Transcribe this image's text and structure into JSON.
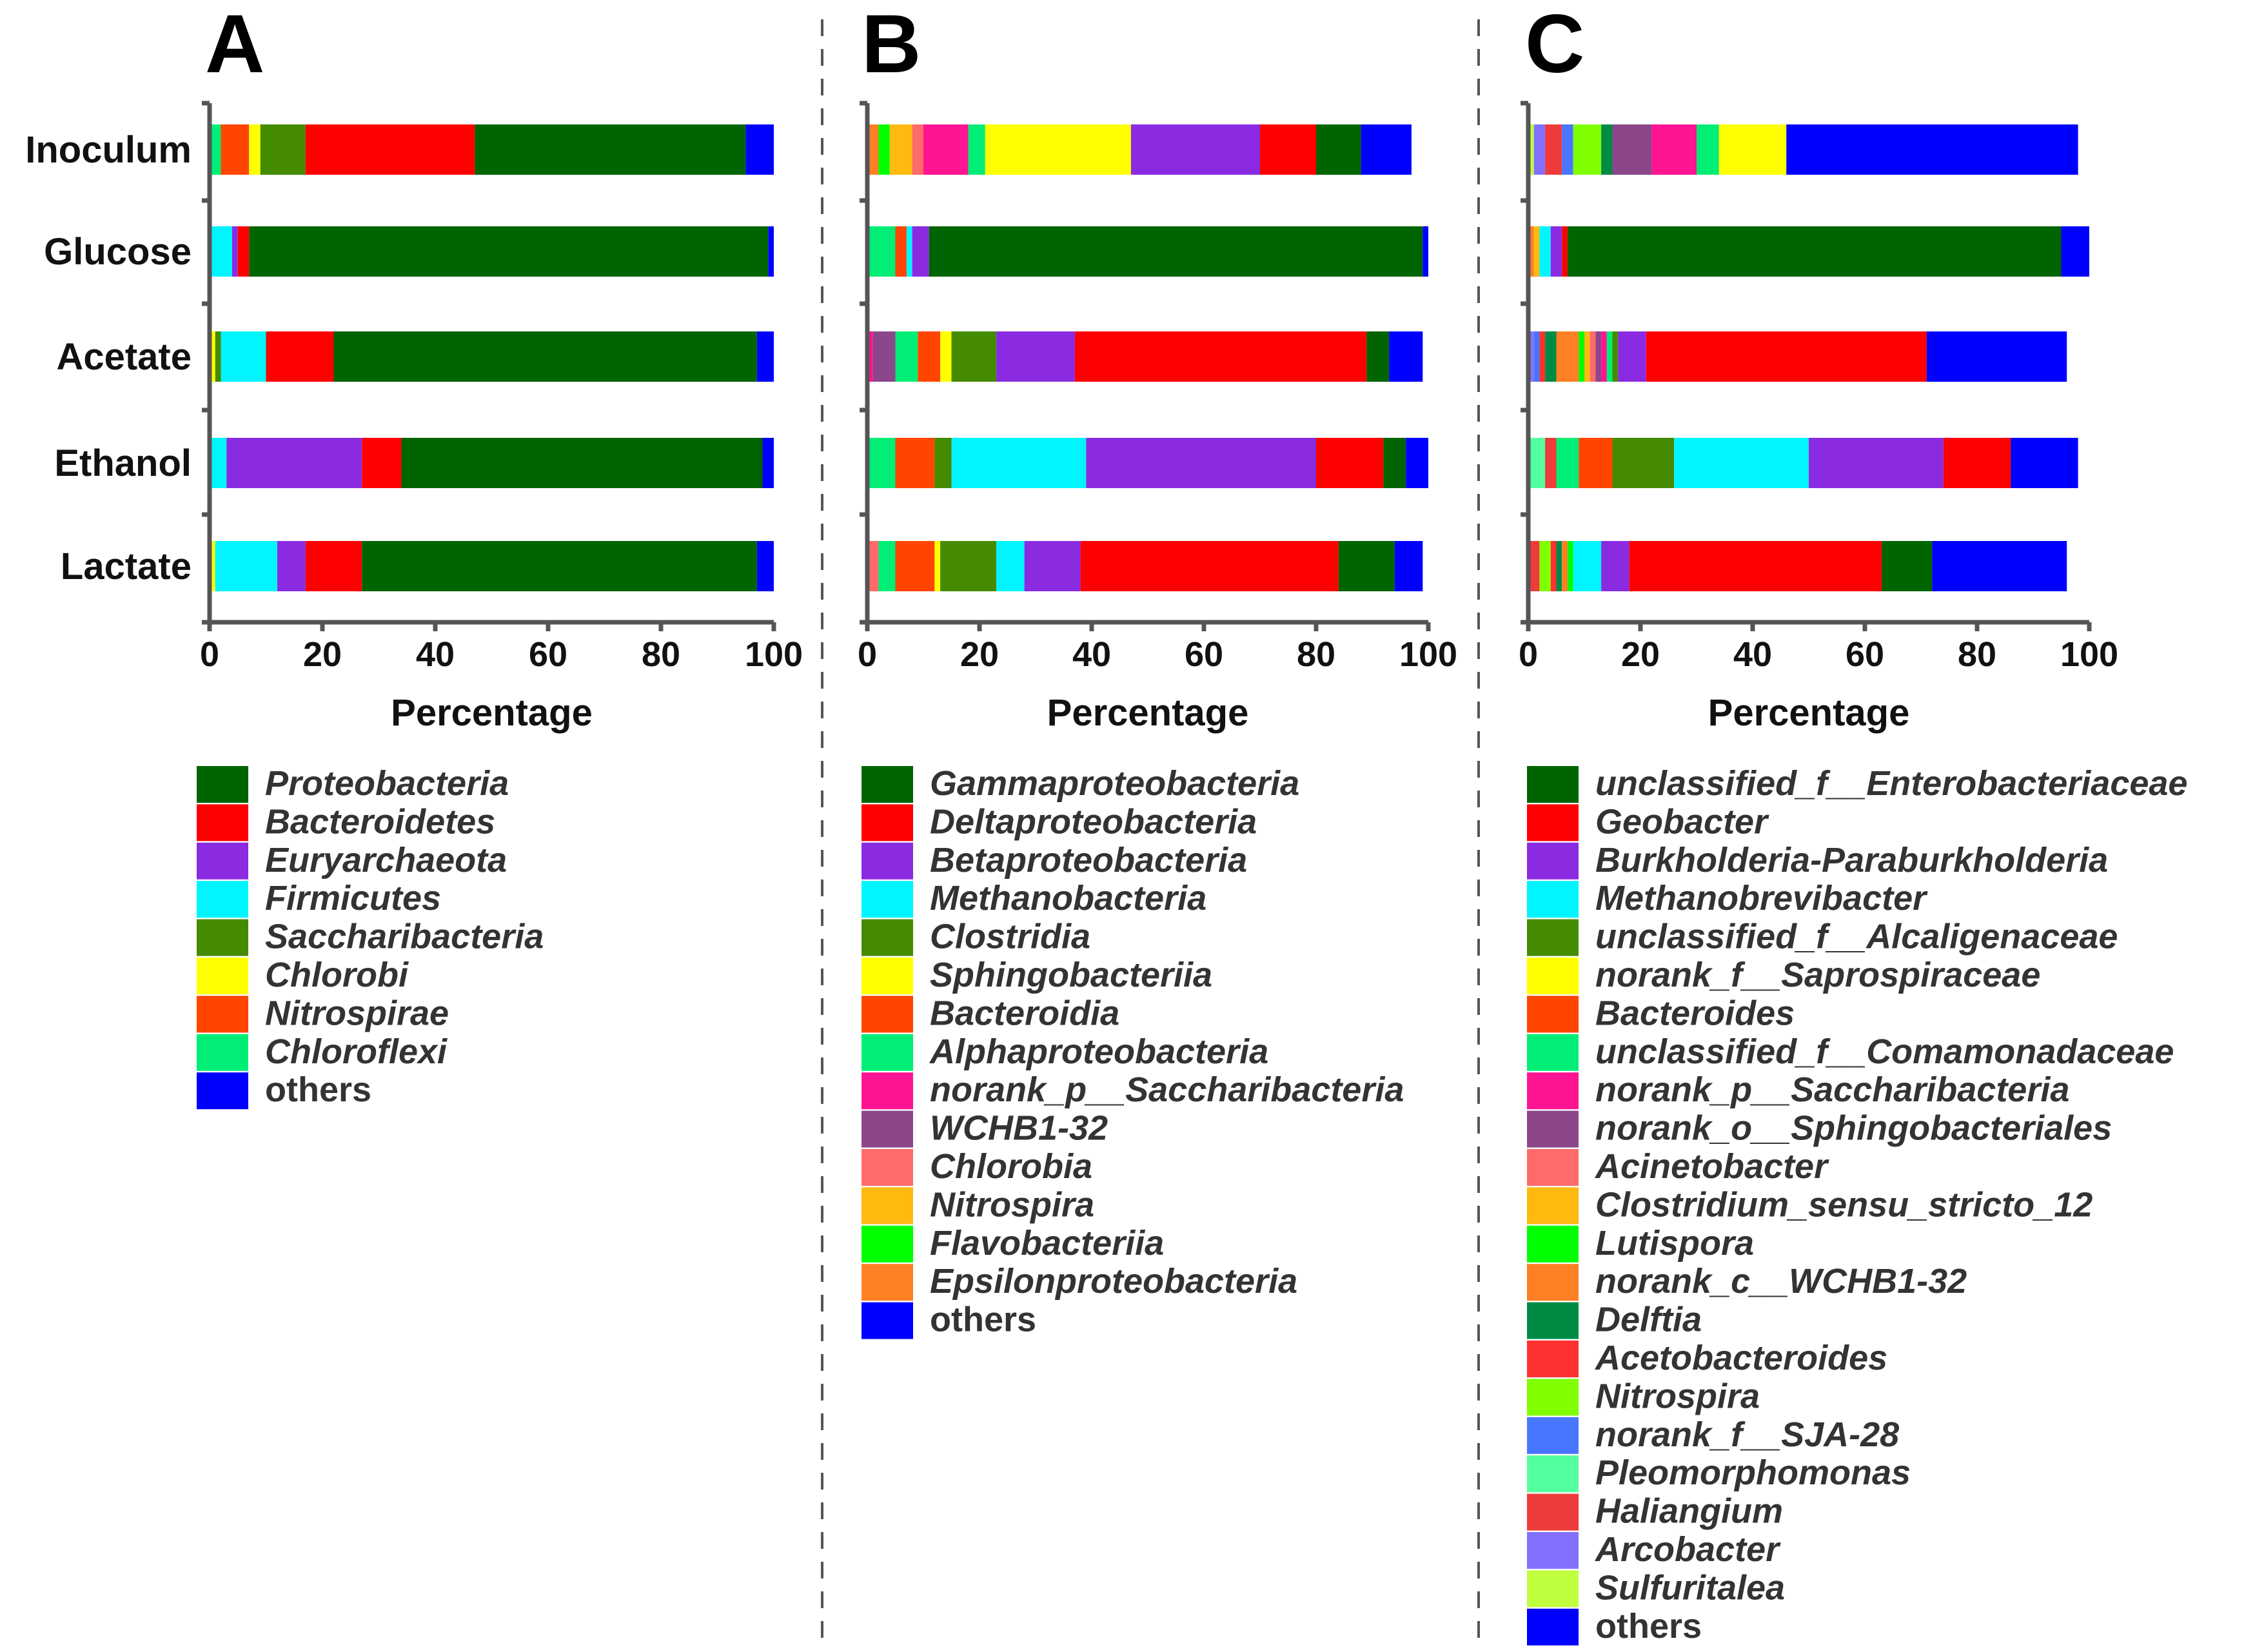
{
  "chart_data": [
    {
      "panel": "A",
      "type": "bar",
      "orientation": "horizontal",
      "stacked": true,
      "xlabel": "Percentage",
      "xlim": [
        0,
        100
      ],
      "xticks": [
        "0",
        "20",
        "40",
        "60",
        "80",
        "100"
      ],
      "categories": [
        "Inoculum",
        "Glucose",
        "Acetate",
        "Ethanol",
        "Lactate"
      ],
      "series": [
        {
          "name": "Chloroflexi",
          "color": "#00EE76",
          "values": [
            2,
            0,
            0,
            0,
            0
          ]
        },
        {
          "name": "Nitrospirae",
          "color": "#FF4500",
          "values": [
            5,
            0,
            0,
            0,
            0
          ]
        },
        {
          "name": "Chlorobi",
          "color": "#FFFF00",
          "values": [
            2,
            0,
            1,
            0,
            1
          ]
        },
        {
          "name": "Saccharibacteria",
          "color": "#458B00",
          "values": [
            8,
            0,
            1,
            0,
            0
          ]
        },
        {
          "name": "Firmicutes",
          "color": "#00F5FF",
          "values": [
            0,
            4,
            8,
            3,
            11
          ]
        },
        {
          "name": "Euryarchaeota",
          "color": "#8A2BE2",
          "values": [
            0,
            1,
            0,
            24,
            5
          ]
        },
        {
          "name": "Bacteroidetes",
          "color": "#FF0000",
          "values": [
            30,
            2,
            12,
            7,
            10
          ]
        },
        {
          "name": "Proteobacteria",
          "color": "#006400",
          "values": [
            48,
            92,
            75,
            64,
            70
          ]
        },
        {
          "name": "others",
          "color": "#0000FF",
          "values": [
            5,
            1,
            3,
            2,
            3
          ]
        }
      ],
      "legend": [
        {
          "label": "Proteobacteria",
          "color": "#006400",
          "italic": true
        },
        {
          "label": "Bacteroidetes",
          "color": "#FF0000",
          "italic": true
        },
        {
          "label": "Euryarchaeota",
          "color": "#8A2BE2",
          "italic": true
        },
        {
          "label": "Firmicutes",
          "color": "#00F5FF",
          "italic": true
        },
        {
          "label": "Saccharibacteria",
          "color": "#458B00",
          "italic": true
        },
        {
          "label": "Chlorobi",
          "color": "#FFFF00",
          "italic": true
        },
        {
          "label": "Nitrospirae",
          "color": "#FF4500",
          "italic": true
        },
        {
          "label": "Chloroflexi",
          "color": "#00EE76",
          "italic": true
        },
        {
          "label": "others",
          "color": "#0000FF",
          "italic": false
        }
      ]
    },
    {
      "panel": "B",
      "type": "bar",
      "orientation": "horizontal",
      "stacked": true,
      "xlabel": "Percentage",
      "xlim": [
        0,
        100
      ],
      "xticks": [
        "0",
        "20",
        "40",
        "60",
        "80",
        "100"
      ],
      "categories": [
        "Inoculum",
        "Glucose",
        "Acetate",
        "Ethanol",
        "Lactate"
      ],
      "series": [
        {
          "name": "Epsilonproteobacteria",
          "color": "#FF7F24",
          "values": [
            2,
            0,
            0,
            0,
            0
          ]
        },
        {
          "name": "Flavobacteriia",
          "color": "#00FF00",
          "values": [
            2,
            0,
            0,
            0,
            0
          ]
        },
        {
          "name": "Nitrospira",
          "color": "#FFB90F",
          "values": [
            4,
            0,
            0,
            0,
            0
          ]
        },
        {
          "name": "Chlorobia",
          "color": "#FF6A6A",
          "values": [
            2,
            0,
            0,
            0,
            2
          ]
        },
        {
          "name": "norank_p__Saccharibacteria",
          "color": "#FF1493",
          "values": [
            8,
            0,
            1,
            0,
            0
          ]
        },
        {
          "name": "WCHB1-32",
          "color": "#8B4789",
          "values": [
            0,
            0,
            4,
            0,
            0
          ]
        },
        {
          "name": "Alphaproteobacteria",
          "color": "#00EE76",
          "values": [
            3,
            5,
            4,
            5,
            3
          ]
        },
        {
          "name": "Bacteroidia",
          "color": "#FF4500",
          "values": [
            0,
            2,
            4,
            7,
            7
          ]
        },
        {
          "name": "Sphingobacteriia",
          "color": "#FFFF00",
          "values": [
            26,
            0,
            2,
            0,
            1
          ]
        },
        {
          "name": "Clostridia",
          "color": "#458B00",
          "values": [
            0,
            0,
            8,
            3,
            10
          ]
        },
        {
          "name": "Methanobacteria",
          "color": "#00F5FF",
          "values": [
            0,
            1,
            0,
            24,
            5
          ]
        },
        {
          "name": "Betaproteobacteria",
          "color": "#8A2BE2",
          "values": [
            23,
            3,
            14,
            41,
            10
          ]
        },
        {
          "name": "Deltaproteobacteria",
          "color": "#FF0000",
          "values": [
            10,
            0,
            52,
            12,
            46
          ]
        },
        {
          "name": "Gammaproteobacteria",
          "color": "#006400",
          "values": [
            8,
            88,
            4,
            4,
            10
          ]
        },
        {
          "name": "others",
          "color": "#0000FF",
          "values": [
            9,
            1,
            6,
            4,
            5
          ]
        }
      ],
      "legend": [
        {
          "label": "Gammaproteobacteria",
          "color": "#006400",
          "italic": true
        },
        {
          "label": "Deltaproteobacteria",
          "color": "#FF0000",
          "italic": true
        },
        {
          "label": "Betaproteobacteria",
          "color": "#8A2BE2",
          "italic": true
        },
        {
          "label": "Methanobacteria",
          "color": "#00F5FF",
          "italic": true
        },
        {
          "label": "Clostridia",
          "color": "#458B00",
          "italic": true
        },
        {
          "label": "Sphingobacteriia",
          "color": "#FFFF00",
          "italic": true
        },
        {
          "label": "Bacteroidia",
          "color": "#FF4500",
          "italic": true
        },
        {
          "label": "Alphaproteobacteria",
          "color": "#00EE76",
          "italic": true
        },
        {
          "label": "norank_p__Saccharibacteria",
          "color": "#FF1493",
          "italic": true
        },
        {
          "label": "WCHB1-32",
          "color": "#8B4789",
          "italic": true
        },
        {
          "label": "Chlorobia",
          "color": "#FF6A6A",
          "italic": true
        },
        {
          "label": "Nitrospira",
          "color": "#FFB90F",
          "italic": true
        },
        {
          "label": "Flavobacteriia",
          "color": "#00FF00",
          "italic": true
        },
        {
          "label": "Epsilonproteobacteria",
          "color": "#FF7F24",
          "italic": true
        },
        {
          "label": "others",
          "color": "#0000FF",
          "italic": false
        }
      ]
    },
    {
      "panel": "C",
      "type": "bar",
      "orientation": "horizontal",
      "stacked": true,
      "xlabel": "Percentage",
      "xlim": [
        0,
        100
      ],
      "xticks": [
        "0",
        "20",
        "40",
        "60",
        "80",
        "100"
      ],
      "categories": [
        "Inoculum",
        "Glucose",
        "Acetate",
        "Ethanol",
        "Lactate"
      ],
      "series": [
        {
          "name": "Sulfuritalea",
          "color": "#C0FF3E",
          "values": [
            1,
            0,
            0,
            0,
            0
          ]
        },
        {
          "name": "Arcobacter",
          "color": "#8470FF",
          "values": [
            2,
            0,
            1,
            0,
            0
          ]
        },
        {
          "name": "Pleomorphomonas",
          "color": "#54FF9F",
          "values": [
            0,
            0,
            0,
            3,
            0
          ]
        },
        {
          "name": "Haliangium",
          "color": "#EE3B3B",
          "values": [
            3,
            0,
            0,
            2,
            2
          ]
        },
        {
          "name": "norank_f__SJA-28",
          "color": "#4876FF",
          "values": [
            2,
            0,
            1,
            0,
            0
          ]
        },
        {
          "name": "Nitrospira",
          "color": "#7FFF00",
          "values": [
            5,
            0,
            0,
            0,
            2
          ]
        },
        {
          "name": "Acetobacteroides",
          "color": "#FF3030",
          "values": [
            0,
            0,
            1,
            0,
            1
          ]
        },
        {
          "name": "Delftia",
          "color": "#008B45",
          "values": [
            2,
            0,
            2,
            0,
            1
          ]
        },
        {
          "name": "norank_c__WCHB1-32",
          "color": "#FF7F24",
          "values": [
            0,
            1,
            4,
            0,
            1
          ]
        },
        {
          "name": "Lutispora",
          "color": "#00FF00",
          "values": [
            0,
            0,
            1,
            0,
            1
          ]
        },
        {
          "name": "Clostridium_sensu_stricto_12",
          "color": "#FFB90F",
          "values": [
            0,
            1,
            1,
            0,
            0
          ]
        },
        {
          "name": "Acinetobacter",
          "color": "#FF6A6A",
          "values": [
            0,
            0,
            1,
            0,
            0
          ]
        },
        {
          "name": "norank_o__Sphingobacteriales",
          "color": "#8B4789",
          "values": [
            7,
            0,
            1,
            0,
            0
          ]
        },
        {
          "name": "norank_p__Saccharibacteria",
          "color": "#FF1493",
          "values": [
            8,
            0,
            1,
            0,
            0
          ]
        },
        {
          "name": "unclassified_f__Comamonadaceae",
          "color": "#00EE76",
          "values": [
            4,
            0,
            1,
            4,
            0
          ]
        },
        {
          "name": "Bacteroides",
          "color": "#FF4500",
          "values": [
            0,
            0,
            0,
            6,
            0
          ]
        },
        {
          "name": "norank_f__Saprospiraceae",
          "color": "#FFFF00",
          "values": [
            12,
            0,
            0,
            0,
            0
          ]
        },
        {
          "name": "unclassified_f__Alcaligenaceae",
          "color": "#458B00",
          "values": [
            0,
            0,
            1,
            11,
            0
          ]
        },
        {
          "name": "Methanobrevibacter",
          "color": "#00F5FF",
          "values": [
            0,
            2,
            0,
            24,
            5
          ]
        },
        {
          "name": "Burkholderia-Paraburkholderia",
          "color": "#8A2BE2",
          "values": [
            0,
            2,
            5,
            24,
            5
          ]
        },
        {
          "name": "Geobacter",
          "color": "#FF0000",
          "values": [
            0,
            1,
            50,
            12,
            45
          ]
        },
        {
          "name": "unclassified_f__Enterobacteriaceae",
          "color": "#006400",
          "values": [
            0,
            88,
            0,
            0,
            9
          ]
        },
        {
          "name": "others",
          "color": "#0000FF",
          "values": [
            52,
            5,
            25,
            12,
            24
          ]
        }
      ],
      "legend": [
        {
          "label": "unclassified_f__Enterobacteriaceae",
          "color": "#006400",
          "italic": true
        },
        {
          "label": "Geobacter",
          "color": "#FF0000",
          "italic": true
        },
        {
          "label": "Burkholderia-Paraburkholderia",
          "color": "#8A2BE2",
          "italic": true
        },
        {
          "label": "Methanobrevibacter",
          "color": "#00F5FF",
          "italic": true
        },
        {
          "label": "unclassified_f__Alcaligenaceae",
          "color": "#458B00",
          "italic": true
        },
        {
          "label": "norank_f__Saprospiraceae",
          "color": "#FFFF00",
          "italic": true
        },
        {
          "label": "Bacteroides",
          "color": "#FF4500",
          "italic": true
        },
        {
          "label": "unclassified_f__Comamonadaceae",
          "color": "#00EE76",
          "italic": true
        },
        {
          "label": "norank_p__Saccharibacteria",
          "color": "#FF1493",
          "italic": true
        },
        {
          "label": "norank_o__Sphingobacteriales",
          "color": "#8B4789",
          "italic": true
        },
        {
          "label": "Acinetobacter",
          "color": "#FF6A6A",
          "italic": true
        },
        {
          "label": "Clostridium_sensu_stricto_12",
          "color": "#FFB90F",
          "italic": true
        },
        {
          "label": "Lutispora",
          "color": "#00FF00",
          "italic": true
        },
        {
          "label": "norank_c__WCHB1-32",
          "color": "#FF7F24",
          "italic": true
        },
        {
          "label": "Delftia",
          "color": "#008B45",
          "italic": true
        },
        {
          "label": "Acetobacteroides",
          "color": "#FF3030",
          "italic": true
        },
        {
          "label": "Nitrospira",
          "color": "#7FFF00",
          "italic": true
        },
        {
          "label": "norank_f__SJA-28",
          "color": "#4876FF",
          "italic": true
        },
        {
          "label": "Pleomorphomonas",
          "color": "#54FF9F",
          "italic": true
        },
        {
          "label": "Haliangium",
          "color": "#EE3B3B",
          "italic": true
        },
        {
          "label": "Arcobacter",
          "color": "#8470FF",
          "italic": true
        },
        {
          "label": "Sulfuritalea",
          "color": "#C0FF3E",
          "italic": true
        },
        {
          "label": "others",
          "color": "#0000FF",
          "italic": false
        }
      ]
    }
  ]
}
